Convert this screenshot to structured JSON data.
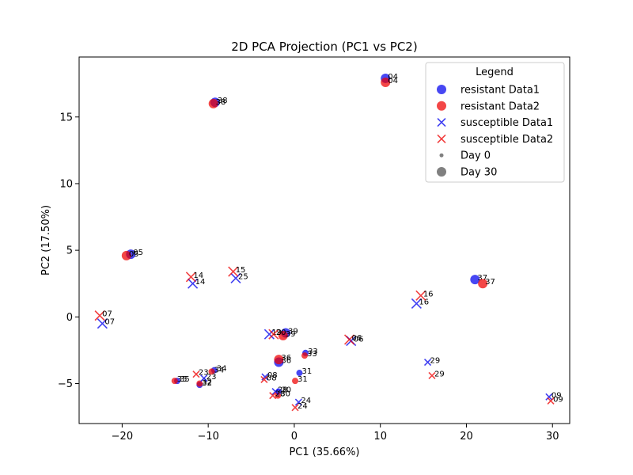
{
  "chart_data": {
    "type": "scatter",
    "title": "2D PCA Projection (PC1 vs PC2)",
    "xlabel": "PC1 (35.66%)",
    "ylabel": "PC2 (17.50%)",
    "xlim": [
      -25,
      32
    ],
    "ylim": [
      -8,
      19.5
    ],
    "xticks": [
      -20,
      -10,
      0,
      10,
      20,
      30
    ],
    "yticks": [
      -5,
      0,
      5,
      10,
      15
    ],
    "grid": false,
    "legend_placement": "top-right",
    "legend": {
      "title": "Legend",
      "entries": [
        {
          "label": "resistant Data1",
          "marker": "circle",
          "color": "#0000ee"
        },
        {
          "label": "resistant Data2",
          "marker": "circle",
          "color": "#ee0000"
        },
        {
          "label": "susceptible Data1",
          "marker": "x",
          "color": "#0000ee"
        },
        {
          "label": "susceptible Data2",
          "marker": "x",
          "color": "#ee0000"
        },
        {
          "label": "Day 0",
          "marker": "circle-small",
          "color": "#808080"
        },
        {
          "label": "Day 30",
          "marker": "circle-large",
          "color": "#808080"
        }
      ]
    },
    "series": [
      {
        "name": "resistant Data1",
        "marker": "circle",
        "color": "#0000ee",
        "points": [
          {
            "x": 10.6,
            "y": 17.9,
            "label": "04",
            "day": 30
          },
          {
            "x": -9.2,
            "y": 16.1,
            "label": "38",
            "day": 30
          },
          {
            "x": -19.0,
            "y": 4.7,
            "label": "05",
            "day": 30
          },
          {
            "x": 21.0,
            "y": 2.8,
            "label": "37",
            "day": 30
          },
          {
            "x": -1.0,
            "y": -1.2,
            "label": "39",
            "day": 30
          },
          {
            "x": -1.8,
            "y": -3.4,
            "label": "36",
            "day": 30
          },
          {
            "x": 1.3,
            "y": -2.7,
            "label": "33",
            "day": 0
          },
          {
            "x": 0.6,
            "y": -4.2,
            "label": "31",
            "day": 0
          },
          {
            "x": -9.3,
            "y": -4.0,
            "label": "34",
            "day": 0
          },
          {
            "x": -13.6,
            "y": -4.8,
            "label": "35",
            "day": 0
          },
          {
            "x": -11.0,
            "y": -5.1,
            "label": "32",
            "day": 0
          },
          {
            "x": -1.8,
            "y": -5.6,
            "label": "30",
            "day": 0
          }
        ]
      },
      {
        "name": "resistant Data2",
        "marker": "circle",
        "color": "#ee0000",
        "points": [
          {
            "x": 10.6,
            "y": 17.6,
            "label": "04",
            "day": 30
          },
          {
            "x": -9.4,
            "y": 16.0,
            "label": "38",
            "day": 30
          },
          {
            "x": -19.5,
            "y": 4.6,
            "label": "05",
            "day": 30
          },
          {
            "x": 21.9,
            "y": 2.5,
            "label": "37",
            "day": 30
          },
          {
            "x": -1.3,
            "y": -1.4,
            "label": "39",
            "day": 30
          },
          {
            "x": -1.8,
            "y": -3.2,
            "label": "36",
            "day": 30
          },
          {
            "x": 1.2,
            "y": -2.9,
            "label": "33",
            "day": 0
          },
          {
            "x": 0.1,
            "y": -4.8,
            "label": "31",
            "day": 0
          },
          {
            "x": -9.6,
            "y": -4.1,
            "label": "34",
            "day": 0
          },
          {
            "x": -13.9,
            "y": -4.8,
            "label": "35",
            "day": 0
          },
          {
            "x": -11.0,
            "y": -5.0,
            "label": "32",
            "day": 0
          },
          {
            "x": -1.9,
            "y": -5.9,
            "label": "30",
            "day": 0
          }
        ]
      },
      {
        "name": "susceptible Data1",
        "marker": "x",
        "color": "#0000ee",
        "points": [
          {
            "x": -11.8,
            "y": 2.5,
            "label": "14",
            "day": 30
          },
          {
            "x": -6.8,
            "y": 2.9,
            "label": "25",
            "day": 30
          },
          {
            "x": -22.3,
            "y": -0.5,
            "label": "07",
            "day": 30
          },
          {
            "x": 14.2,
            "y": 1.0,
            "label": "16",
            "day": 30
          },
          {
            "x": -2.9,
            "y": -1.3,
            "label": "19",
            "day": 30
          },
          {
            "x": 6.6,
            "y": -1.8,
            "label": "06",
            "day": 30
          },
          {
            "x": 15.5,
            "y": -3.4,
            "label": "29",
            "day": 0
          },
          {
            "x": -3.4,
            "y": -4.5,
            "label": "08",
            "day": 0
          },
          {
            "x": -10.5,
            "y": -4.6,
            "label": "23",
            "day": 0
          },
          {
            "x": -2.2,
            "y": -5.6,
            "label": "28",
            "day": 0
          },
          {
            "x": 0.5,
            "y": -6.4,
            "label": "24",
            "day": 0
          },
          {
            "x": 29.6,
            "y": -6.0,
            "label": "09",
            "day": 0
          }
        ]
      },
      {
        "name": "susceptible Data2",
        "marker": "x",
        "color": "#ee0000",
        "points": [
          {
            "x": -12.0,
            "y": 3.0,
            "label": "14",
            "day": 30
          },
          {
            "x": -7.1,
            "y": 3.4,
            "label": "15",
            "day": 30
          },
          {
            "x": -22.6,
            "y": 0.1,
            "label": "07",
            "day": 30
          },
          {
            "x": 14.7,
            "y": 1.6,
            "label": "16",
            "day": 30
          },
          {
            "x": -2.4,
            "y": -1.3,
            "label": "20",
            "day": 30
          },
          {
            "x": 6.4,
            "y": -1.7,
            "label": "06",
            "day": 30
          },
          {
            "x": 16.0,
            "y": -4.4,
            "label": "29",
            "day": 0
          },
          {
            "x": -3.5,
            "y": -4.7,
            "label": "08",
            "day": 0
          },
          {
            "x": -11.4,
            "y": -4.3,
            "label": "23",
            "day": 0
          },
          {
            "x": -2.5,
            "y": -5.9,
            "label": "28",
            "day": 0
          },
          {
            "x": 0.1,
            "y": -6.8,
            "label": "24",
            "day": 0
          },
          {
            "x": 29.8,
            "y": -6.3,
            "label": "09",
            "day": 0
          }
        ]
      }
    ]
  }
}
